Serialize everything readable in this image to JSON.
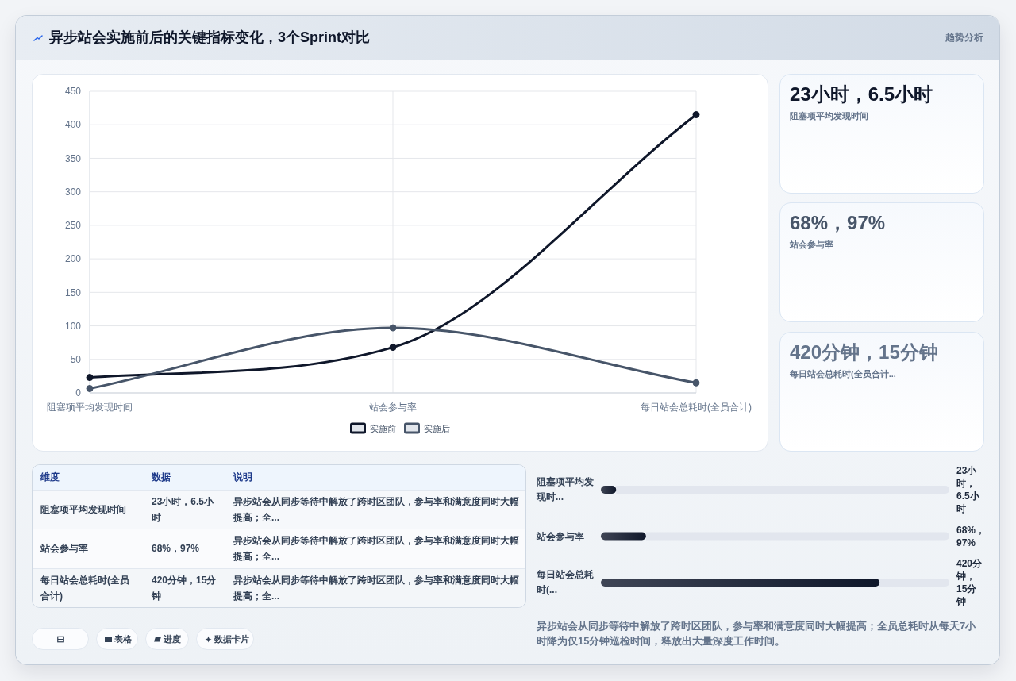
{
  "chart_data": [
    {
      "type": "other",
      "title": "异步站会实施前后的关键指标变化，3个Sprint对比",
      "subtitle": "趋势分析"
    },
    {
      "type": "line",
      "categories": [
        "阻塞项平均发现时间",
        "站会参与率",
        "每日站会总耗时(全员合计)"
      ],
      "series": [
        {
          "name": "实施前",
          "color": "#0f172a",
          "values": [
            23,
            68,
            415
          ]
        },
        {
          "name": "实施后",
          "color": "#475569",
          "values": [
            6.5,
            97,
            15
          ]
        }
      ],
      "ylim": [
        0,
        450
      ],
      "yticks": [
        0,
        50,
        100,
        150,
        200,
        250,
        300,
        350,
        400,
        450
      ],
      "grid": true,
      "legend": "bottom",
      "marker": "circle",
      "line_style": "solid"
    },
    {
      "type": "other",
      "title": "23小时，6.5小时",
      "subtitle": "阻塞项平均发现时间",
      "color": "#0f172a"
    },
    {
      "type": "other",
      "title": "68%，97%",
      "subtitle": "站会参与率",
      "color": "#475569"
    },
    {
      "type": "other",
      "title": "420分钟，15分钟",
      "subtitle": "每日站会总耗时(全员合计...",
      "color": "#64748b"
    },
    {
      "type": "other",
      "categories": [
        "维度",
        "数据",
        "说明"
      ],
      "y_categories": [
        "阻塞项平均发现时间",
        "站会参与率",
        "每日站会总耗时(全员合计)"
      ],
      "cell_labels": [
        [
          "23小时，6.5小时",
          "异步站会从同步等待中解放了跨时区团队，参与率和满意度同时大幅提高；全..."
        ],
        [
          "68%，97%",
          "异步站会从同步等待中解放了跨时区团队，参与率和满意度同时大幅提高；全..."
        ],
        [
          "420分钟，15分钟",
          "异步站会从同步等待中解放了跨时区团队，参与率和满意度同时大幅提高；全..."
        ]
      ],
      "annotations": [
        "表格",
        "进度",
        "数据卡片"
      ]
    },
    {
      "type": "bar",
      "orientation": "horizontal",
      "categories": [
        "阻塞项平均发现时...",
        "站会参与率",
        "每日站会总耗时(..."
      ],
      "values": [
        23,
        68,
        420
      ],
      "value_labels": [
        "23小时，6.5小时",
        "68%，97%",
        "420分钟，15分钟"
      ],
      "color": "#0f172a",
      "annotations": [
        "异步站会从同步等待中解放了跨时区团队，参与率和满意度同时大幅提高；全员总耗时从每天7小时降为仅15分钟巡检时间，释放出大量深度工作时间。"
      ]
    }
  ]
}
